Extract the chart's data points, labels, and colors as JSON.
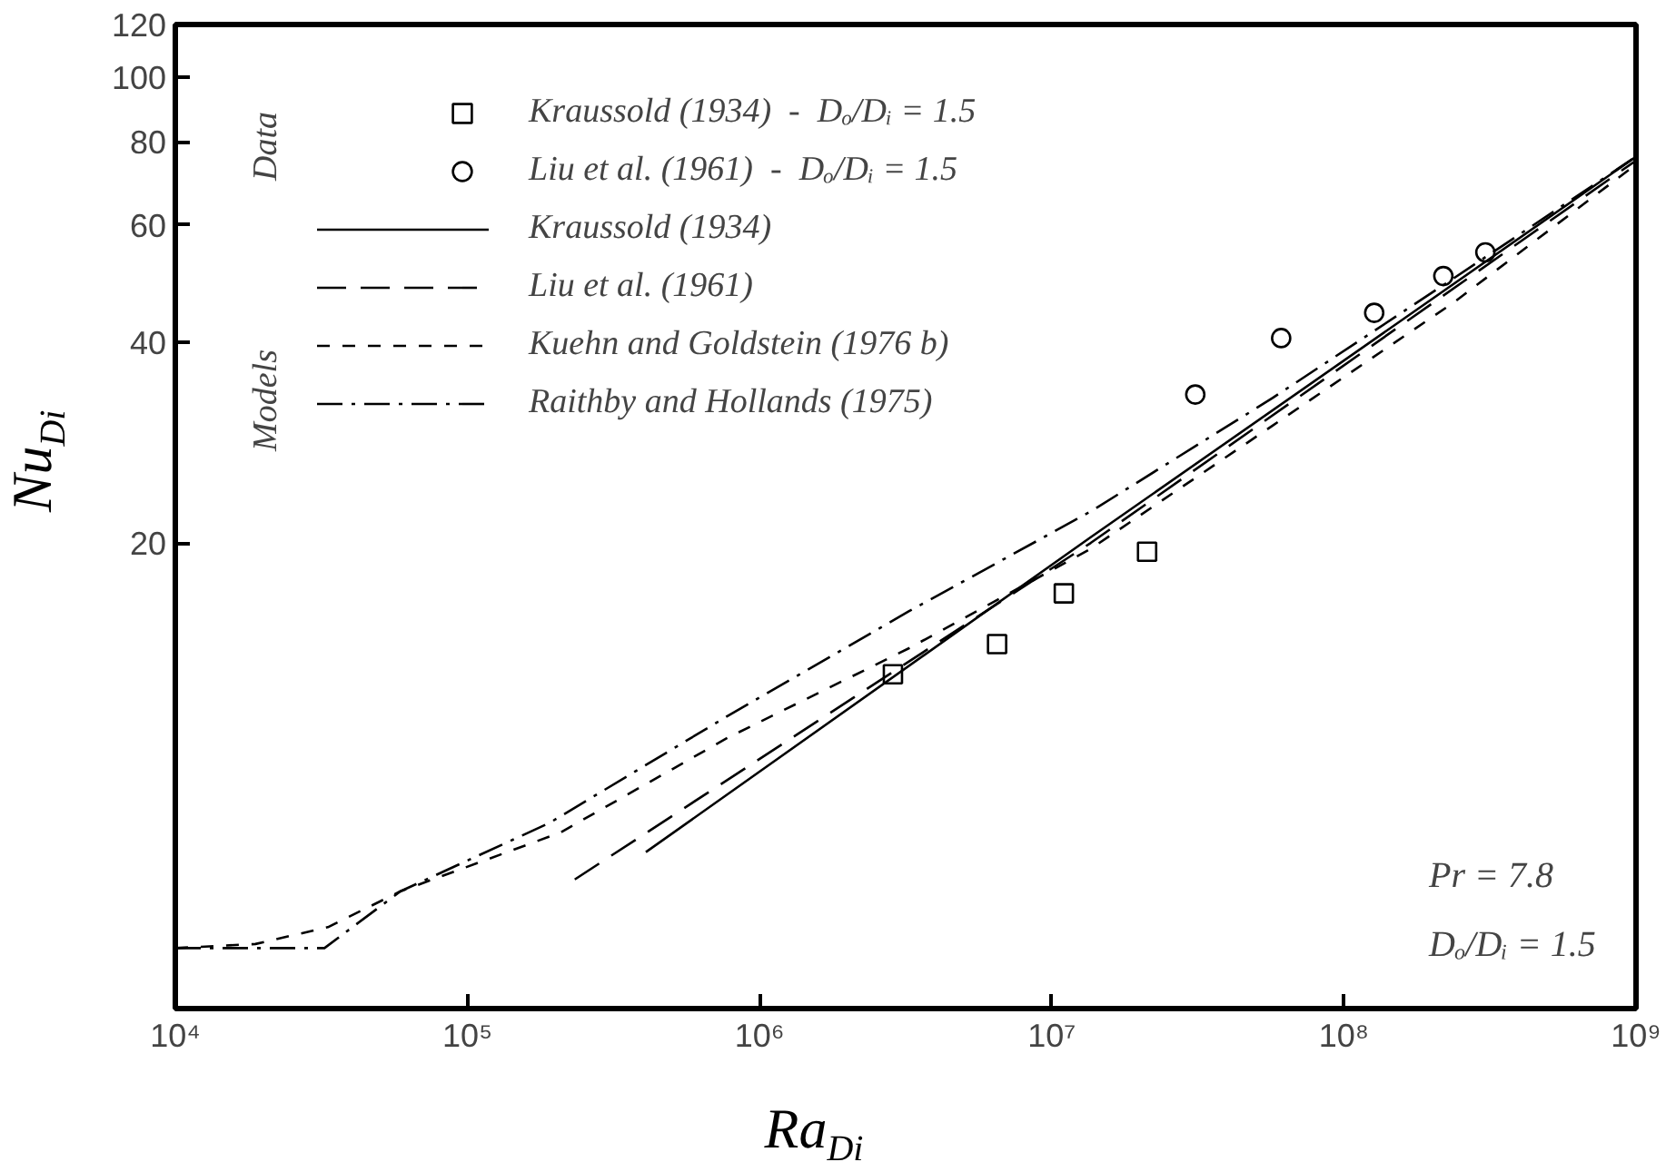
{
  "chart_data": {
    "type": "line",
    "xlabel": "Ra$_{Di}$",
    "ylabel": "Nu$_{Di}$",
    "log": "xy",
    "xlim": [
      10000,
      1000000000
    ],
    "ylim": [
      4,
      120
    ],
    "xticks": [
      {
        "value": 10000,
        "label": "10⁴"
      },
      {
        "value": 100000,
        "label": "10⁵"
      },
      {
        "value": 1000000,
        "label": "10⁶"
      },
      {
        "value": 10000000,
        "label": "10⁷"
      },
      {
        "value": 100000000,
        "label": "10⁸"
      },
      {
        "value": 1000000000,
        "label": "10⁹"
      }
    ],
    "yticks": [
      20,
      40,
      60,
      80,
      100,
      120
    ],
    "grid": false,
    "legend": "top left",
    "annotations": [
      "Data",
      "Models",
      "Pr = 7.8",
      "Dₒ/Dᵢ = 1.5"
    ],
    "series": [
      {
        "name": "Kraussold (1934)  -  Dₒ/Dᵢ = 1.5",
        "type": "scatter",
        "marker": "square",
        "color": "#000000",
        "x": [
          2860000,
          6500000,
          11000000,
          21200000
        ],
        "values": [
          12.7,
          14.1,
          16.8,
          19.4
        ]
      },
      {
        "name": "Liu et al. (1961)  -  Dₒ/Dᵢ = 1.5",
        "type": "scatter",
        "marker": "circle",
        "color": "#000000",
        "x": [
          31000000,
          61000000,
          127000000,
          219000000,
          305000000
        ],
        "values": [
          33.4,
          40.6,
          44.3,
          50.3,
          54.6
        ]
      },
      {
        "name": "Kraussold (1934)",
        "type": "line",
        "line_style": "solid",
        "color": "#000000",
        "x": [
          408000,
          13600000,
          1000000000
        ],
        "values": [
          6.87,
          20.4,
          76
        ]
      },
      {
        "name": "Liu et al. (1961)",
        "type": "line",
        "line_style": "longdash",
        "color": "#000000",
        "x": [
          233000,
          13600000,
          1000000000
        ],
        "values": [
          6.25,
          20.0,
          75
        ]
      },
      {
        "name": "Kuehn and Goldstein (1976 b)",
        "type": "line",
        "line_style": "dashed",
        "color": "#000000",
        "x": [
          10000,
          18800,
          33300,
          59000,
          208000,
          778000,
          3250000,
          13600000,
          57000000,
          239000000,
          1000000000
        ],
        "values": [
          4.93,
          5.0,
          5.3,
          6.0,
          7.35,
          10.2,
          13.9,
          19.6,
          30.0,
          46.0,
          74
        ]
      },
      {
        "name": "Raithby and Hollands (1975)",
        "type": "line",
        "line_style": "dashdot",
        "color": "#000000",
        "x": [
          10000,
          32400,
          59000,
          191000,
          778000,
          3250000,
          13600000,
          57000000,
          239000000,
          1000000000
        ],
        "values": [
          4.93,
          4.93,
          6.0,
          7.6,
          11.0,
          15.8,
          22.3,
          33.0,
          50.0,
          76
        ]
      }
    ]
  }
}
